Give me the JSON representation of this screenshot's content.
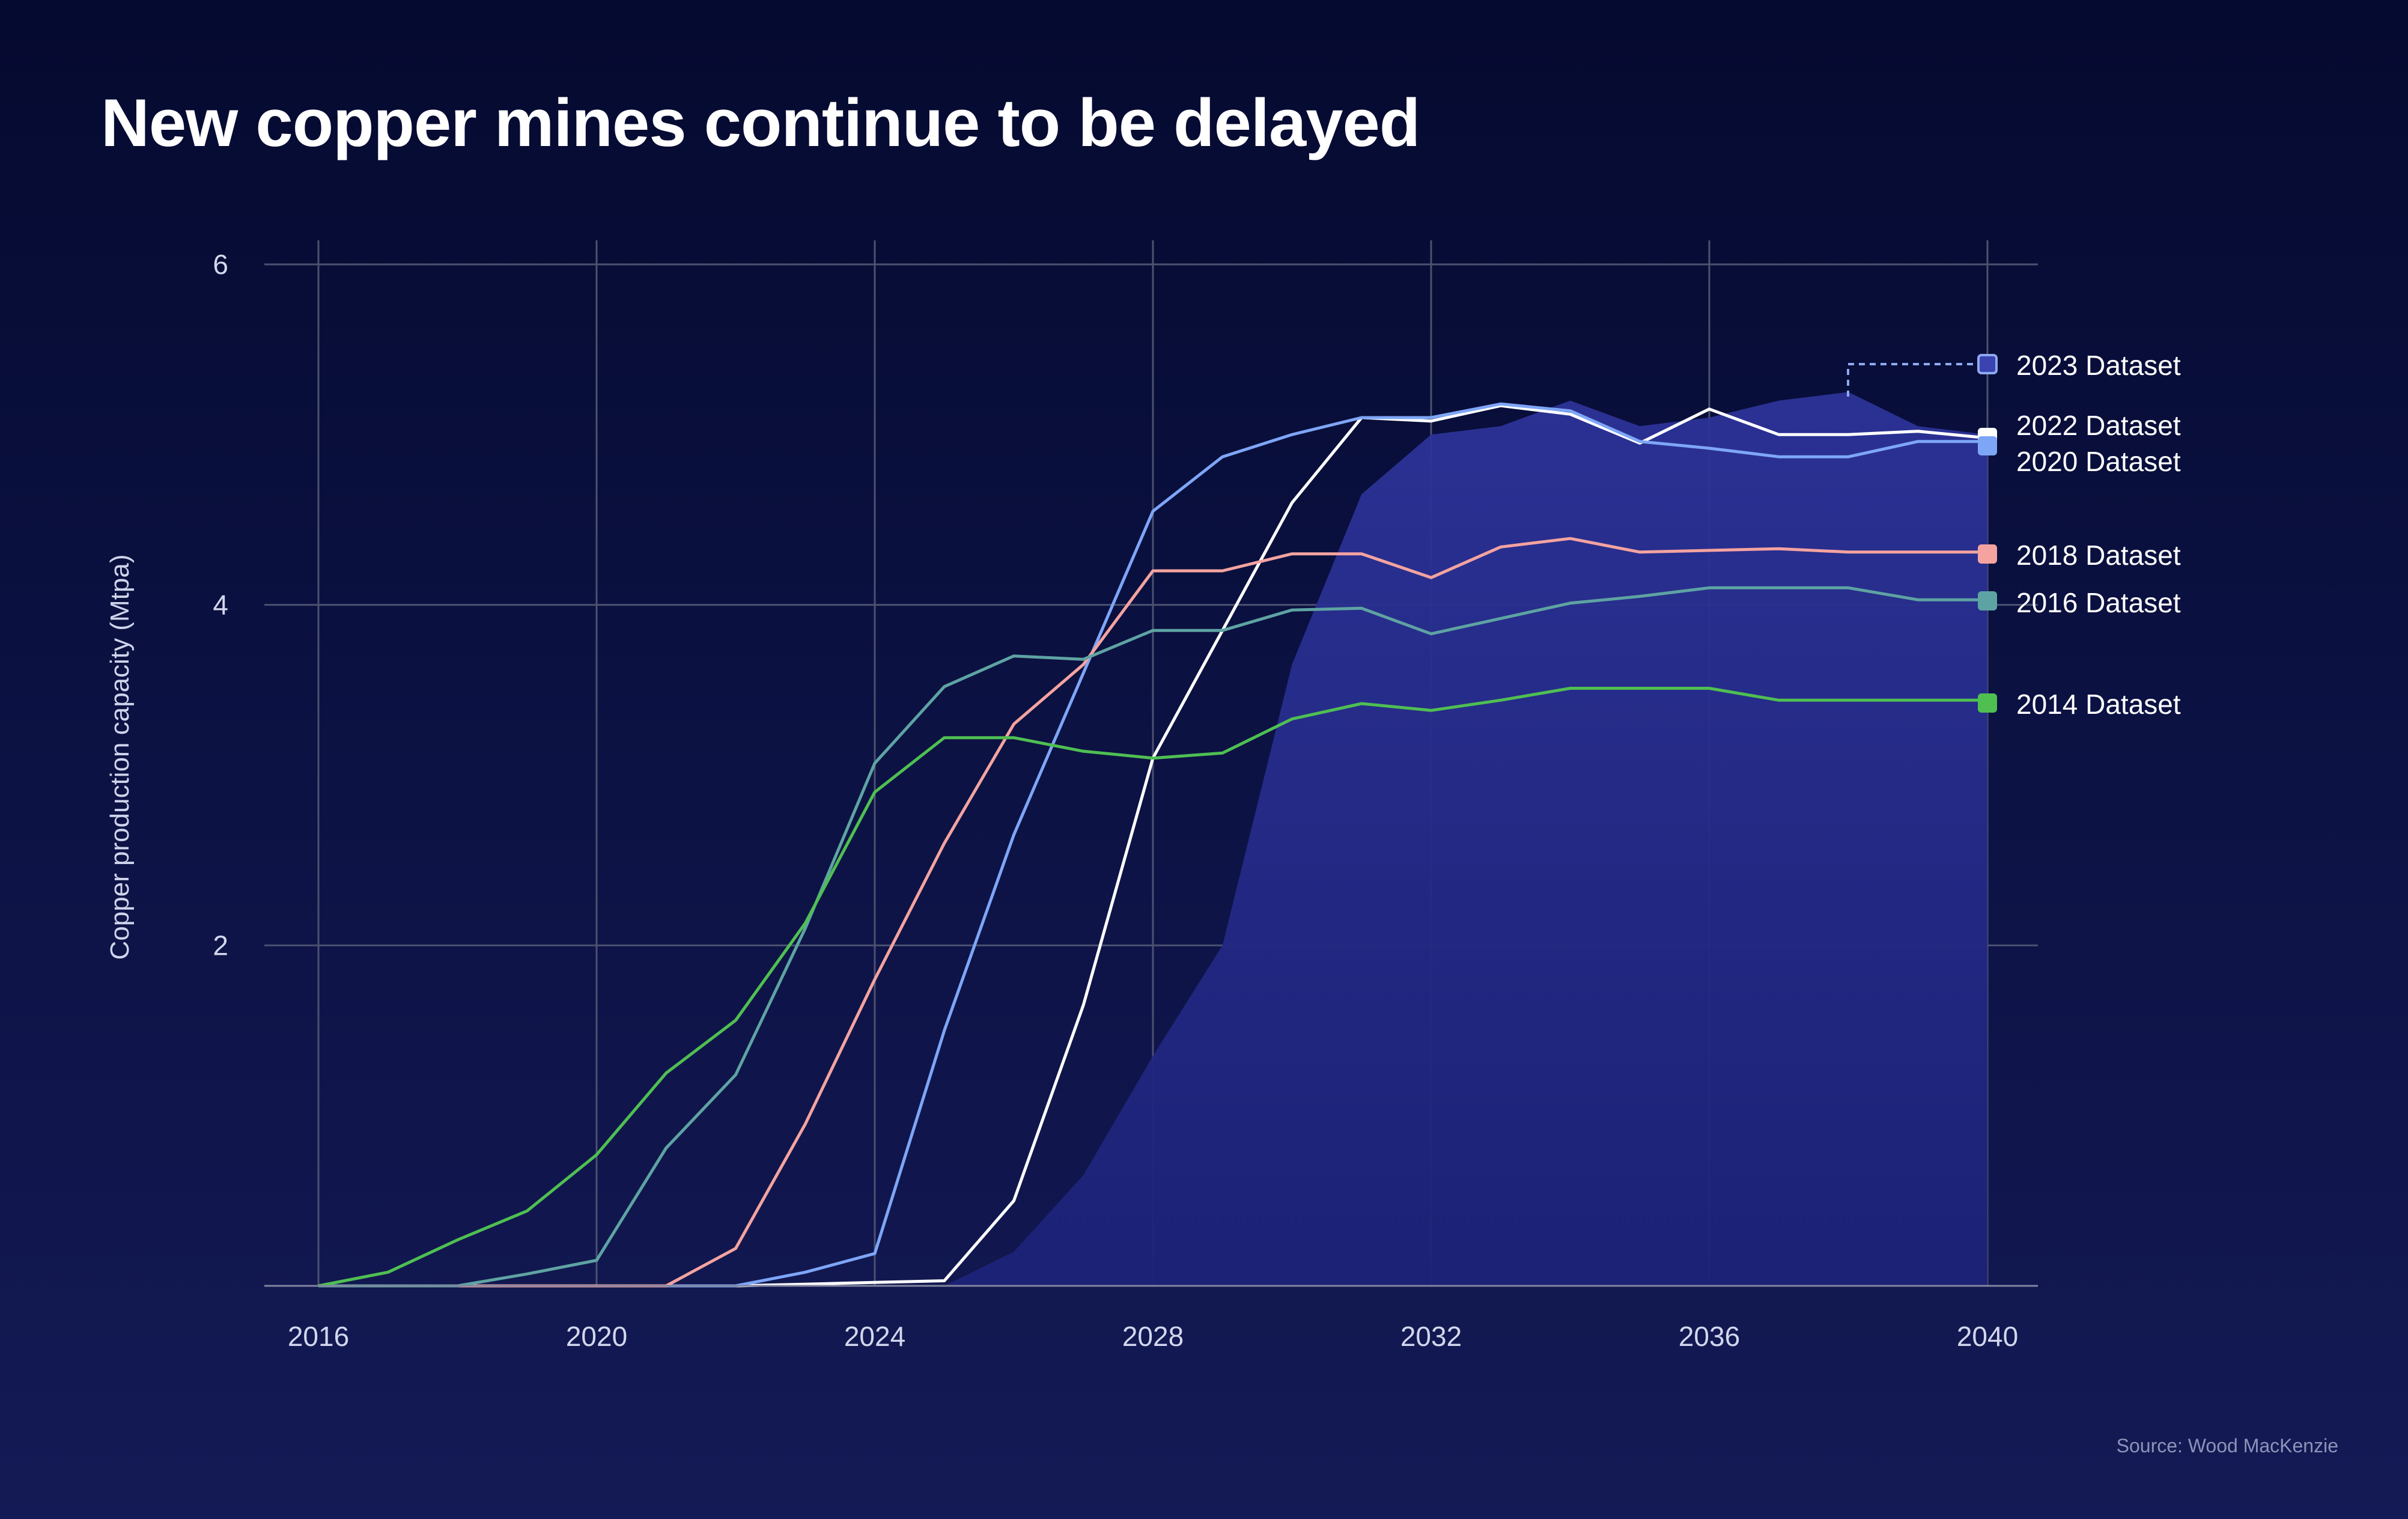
{
  "title": "New copper mines continue to be delayed",
  "source": "Source: Wood MacKenzie",
  "chart_data": {
    "type": "line",
    "title": "New copper mines continue to be delayed",
    "xlabel": "",
    "ylabel": "Copper production capacity (Mtpa)",
    "xlim": [
      2016,
      2040
    ],
    "ylim": [
      0,
      6
    ],
    "x_ticks": [
      2016,
      2020,
      2024,
      2028,
      2032,
      2036,
      2040
    ],
    "y_ticks": [
      2,
      4,
      6
    ],
    "grid": true,
    "legend_position": "right",
    "x": [
      2016,
      2017,
      2018,
      2019,
      2020,
      2021,
      2022,
      2023,
      2024,
      2025,
      2026,
      2027,
      2028,
      2029,
      2030,
      2031,
      2032,
      2033,
      2034,
      2035,
      2036,
      2037,
      2038,
      2039,
      2040
    ],
    "series": [
      {
        "name": "2023 Dataset",
        "style": "area",
        "color": "#2b3196",
        "values": [
          0,
          0,
          0,
          0,
          0,
          0,
          0,
          0,
          0,
          0,
          0.2,
          0.65,
          1.35,
          2.0,
          3.65,
          4.65,
          5.0,
          5.05,
          5.2,
          5.05,
          5.1,
          5.2,
          5.25,
          5.05,
          5.0
        ]
      },
      {
        "name": "2022 Dataset",
        "color": "#ffffff",
        "values": [
          0,
          0,
          0,
          0,
          0,
          0,
          0,
          0.01,
          0.02,
          0.03,
          0.5,
          1.65,
          3.1,
          3.85,
          4.6,
          5.1,
          5.08,
          5.17,
          5.12,
          4.95,
          5.15,
          5.0,
          5.0,
          5.02,
          4.98
        ]
      },
      {
        "name": "2020 Dataset",
        "color": "#7ea6f7",
        "values": [
          0,
          0,
          0,
          0,
          0,
          0,
          0,
          0.08,
          0.19,
          1.5,
          2.65,
          3.6,
          4.55,
          4.87,
          5.0,
          5.1,
          5.1,
          5.18,
          5.14,
          4.96,
          4.92,
          4.87,
          4.87,
          4.96,
          4.96
        ]
      },
      {
        "name": "2018 Dataset",
        "color": "#f4a3a0",
        "values": [
          0,
          0,
          0,
          0,
          0,
          0,
          0.22,
          0.95,
          1.8,
          2.6,
          3.3,
          3.65,
          4.2,
          4.2,
          4.3,
          4.3,
          4.16,
          4.34,
          4.39,
          4.31,
          4.32,
          4.33,
          4.31,
          4.31,
          4.31
        ]
      },
      {
        "name": "2016 Dataset",
        "color": "#5ea3a3",
        "values": [
          0,
          0,
          0,
          0.07,
          0.15,
          0.81,
          1.24,
          2.1,
          3.07,
          3.52,
          3.7,
          3.68,
          3.85,
          3.85,
          3.97,
          3.98,
          3.83,
          3.92,
          4.01,
          4.05,
          4.1,
          4.1,
          4.1,
          4.03,
          4.03
        ]
      },
      {
        "name": "2014 Dataset",
        "color": "#4fbf52",
        "values": [
          0,
          0.08,
          0.27,
          0.44,
          0.77,
          1.25,
          1.56,
          2.13,
          2.9,
          3.22,
          3.22,
          3.14,
          3.1,
          3.13,
          3.33,
          3.42,
          3.38,
          3.44,
          3.51,
          3.51,
          3.51,
          3.44,
          3.44,
          3.44,
          3.44
        ]
      }
    ]
  }
}
